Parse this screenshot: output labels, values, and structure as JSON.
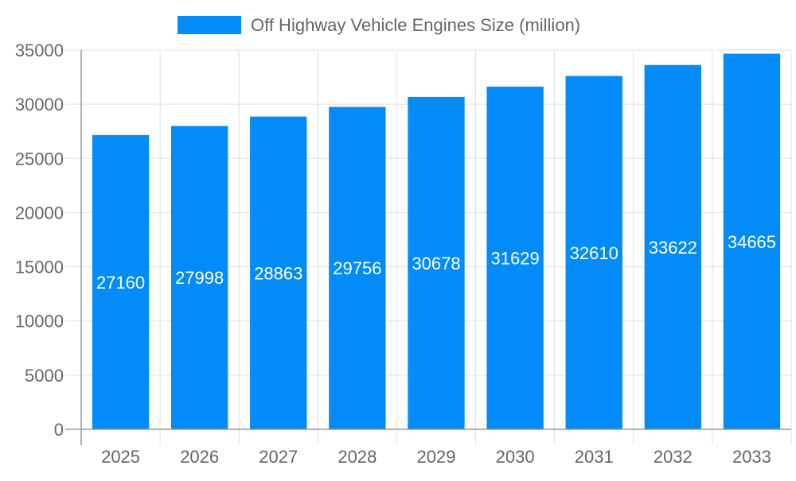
{
  "chart_data": {
    "type": "bar",
    "title": "",
    "xlabel": "",
    "ylabel": "",
    "categories": [
      "2025",
      "2026",
      "2027",
      "2028",
      "2029",
      "2030",
      "2031",
      "2032",
      "2033"
    ],
    "series": [
      {
        "name": "Off Highway Vehicle Engines Size (million)",
        "values": [
          27160,
          27998,
          28863,
          29756,
          30678,
          31629,
          32610,
          33622,
          34665
        ],
        "color": "#038bf7"
      }
    ],
    "ylim": [
      0,
      35000
    ],
    "yticks": [
      0,
      5000,
      10000,
      15000,
      20000,
      25000,
      30000,
      35000
    ],
    "grid": true,
    "legend": "top",
    "data_labels": true
  }
}
